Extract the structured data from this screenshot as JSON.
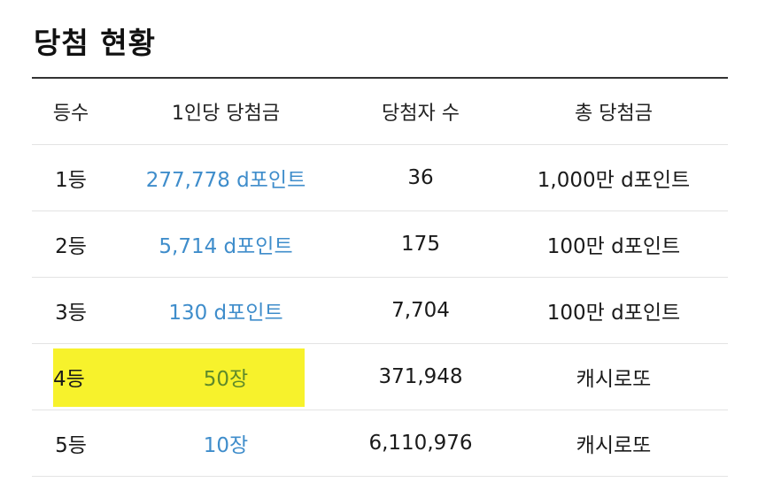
{
  "title": "당첨 현황",
  "colors": {
    "prize_link": "#3f8dcb",
    "highlight": "#f7f22c",
    "highlight_text": "#5f8a2a"
  },
  "table": {
    "headers": [
      "등수",
      "1인당 당첨금",
      "당첨자 수",
      "총 당첨금"
    ],
    "rows": [
      {
        "rank": "1등",
        "prize": "277,778 d포인트",
        "winners": "36",
        "total": "1,000만 d포인트"
      },
      {
        "rank": "2등",
        "prize": "5,714 d포인트",
        "winners": "175",
        "total": "100만 d포인트"
      },
      {
        "rank": "3등",
        "prize": "130 d포인트",
        "winners": "7,704",
        "total": "100만 d포인트"
      },
      {
        "rank": "4등",
        "prize": "50장",
        "winners": "371,948",
        "total": "캐시로또"
      },
      {
        "rank": "5등",
        "prize": "10장",
        "winners": "6,110,976",
        "total": "캐시로또"
      }
    ]
  }
}
